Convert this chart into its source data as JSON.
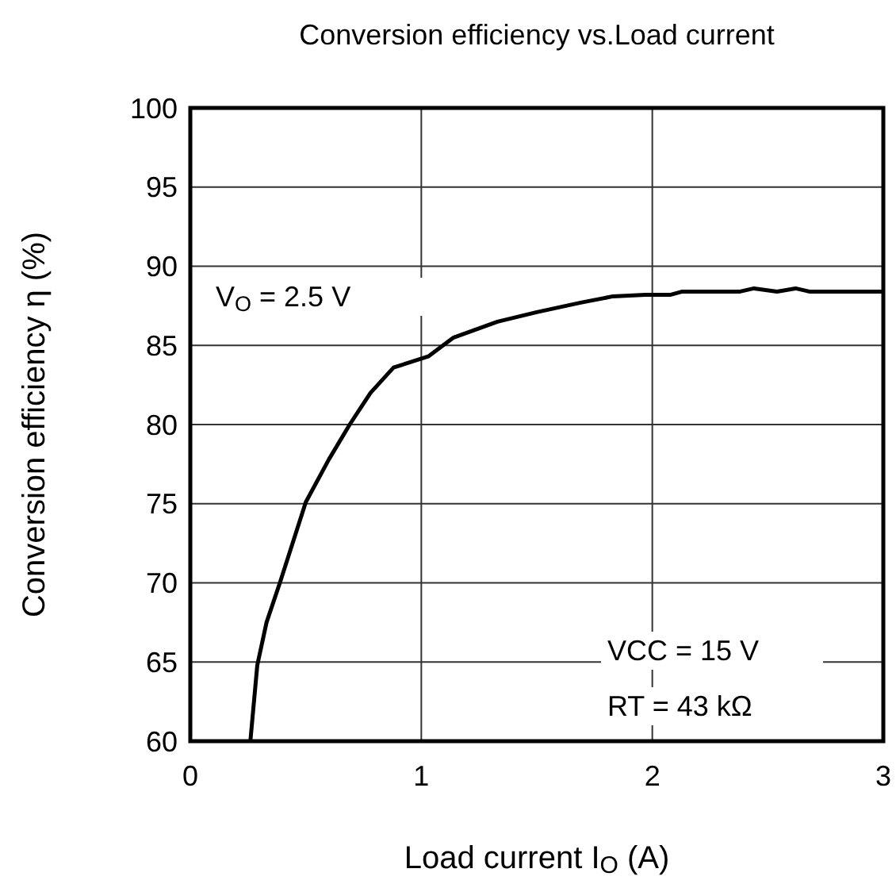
{
  "chart_data": {
    "type": "line",
    "title": "Conversion efficiency vs.Load current",
    "xlabel": "Load current I$_{O}$ (A)",
    "ylabel": "Conversion efficiency η (%)",
    "annotations": [
      "V$_{O}$ = 2.5 V",
      "VCC = 15 V",
      "RT = 43 kΩ"
    ],
    "series": [
      {
        "color": "#000000",
        "x": [
          0.26,
          0.29,
          0.33,
          0.39,
          0.5,
          0.6,
          0.69,
          0.78,
          0.88,
          1.03,
          1.14,
          1.33,
          1.5,
          1.69,
          1.83,
          1.97,
          2.08,
          2.13,
          2.38,
          2.44,
          2.54,
          2.62,
          2.68,
          3.0
        ],
        "values": [
          60,
          64.8,
          67.5,
          70.1,
          75.1,
          77.8,
          80,
          82,
          83.6,
          84.3,
          85.5,
          86.5,
          87.1,
          87.7,
          88.1,
          88.2,
          88.2,
          88.4,
          88.4,
          88.6,
          88.4,
          88.6,
          88.4,
          88.4
        ]
      }
    ],
    "xlim": [
      0,
      3
    ],
    "ylim": [
      60,
      100
    ],
    "xticks": [
      0,
      1,
      2,
      3
    ],
    "yticks": [
      60,
      65,
      70,
      75,
      80,
      85,
      90,
      95,
      100
    ],
    "grid": true,
    "marker": "none",
    "line_style": "solid"
  }
}
